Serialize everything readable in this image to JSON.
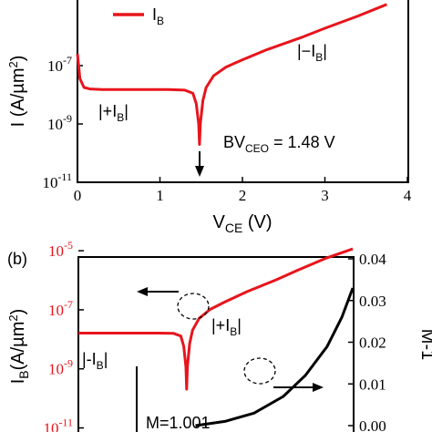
{
  "chart_data": [
    {
      "panel": "",
      "type": "line",
      "xlabel": "V_CE (V)",
      "ylabel": "I (A/µm²)",
      "xlim": [
        0,
        4
      ],
      "ylim_log10": [
        -11,
        -5
      ],
      "y_scale": "log",
      "x_ticks": [
        "0",
        "1",
        "2",
        "3",
        "4"
      ],
      "y_ticks": [
        {
          "base": "10",
          "exp": "-7",
          "value": -7
        },
        {
          "base": "10",
          "exp": "-9",
          "value": -9
        },
        {
          "base": "10",
          "exp": "-11",
          "value": -11
        }
      ],
      "legend": {
        "label_main": "I",
        "label_sub": "B",
        "position": "top-left"
      },
      "series": [
        {
          "name": "I_B",
          "color": "#e8141c",
          "x": [
            0.0,
            0.03,
            0.08,
            0.15,
            0.3,
            0.5,
            0.8,
            1.1,
            1.3,
            1.4,
            1.44,
            1.47,
            1.48,
            1.49,
            1.52,
            1.56,
            1.65,
            1.8,
            2.0,
            2.3,
            2.7,
            3.0,
            3.4,
            3.75
          ],
          "y_log10": [
            -6.6,
            -7.45,
            -7.75,
            -7.8,
            -7.82,
            -7.82,
            -7.82,
            -7.82,
            -7.84,
            -7.95,
            -8.3,
            -9.0,
            -9.7,
            -9.0,
            -8.2,
            -7.75,
            -7.35,
            -7.05,
            -6.8,
            -6.45,
            -6.05,
            -5.72,
            -5.3,
            -4.9
          ]
        }
      ],
      "annotations": [
        {
          "text_parts": [
            "|+I",
            "B",
            "|"
          ],
          "x": 0.6,
          "y_log10": -8.8
        },
        {
          "text_parts": [
            "|−I",
            "B",
            "|"
          ],
          "x": 2.85,
          "y_log10": -6.7
        },
        {
          "text_parts": [
            "BV",
            "CEO",
            " = 1.48 V"
          ],
          "x": 1.75,
          "y_log10": -9.7
        }
      ],
      "grid": false
    },
    {
      "panel": "(b)",
      "type": "line",
      "ylabel_left": "I_B (A/µm²)",
      "ylabel_right": "M-1",
      "y_left_scale": "log",
      "ylim_left_log10": [
        -11,
        -5
      ],
      "ylim_right": [
        0,
        0.04
      ],
      "y_left_ticks": [
        {
          "base": "10",
          "exp": "-5",
          "value": -5
        },
        {
          "base": "10",
          "exp": "-7",
          "value": -7
        },
        {
          "base": "10",
          "exp": "-9",
          "value": -9
        },
        {
          "base": "10",
          "exp": "-11",
          "value": -11
        }
      ],
      "y_right_ticks": [
        "0.04",
        "0.03",
        "0.02",
        "0.01",
        "0.00"
      ],
      "series": [
        {
          "name": "I_B",
          "axis": "left",
          "color": "#e8141c",
          "x": [
            0.0,
            0.3,
            0.6,
            0.9,
            1.1,
            1.3,
            1.4,
            1.44,
            1.47,
            1.48,
            1.49,
            1.52,
            1.56,
            1.65,
            1.8,
            2.0,
            2.3,
            2.7,
            3.0,
            3.4,
            3.75
          ],
          "y_log10": [
            -7.85,
            -7.85,
            -7.85,
            -7.85,
            -7.85,
            -7.86,
            -7.95,
            -8.3,
            -9.0,
            -9.75,
            -9.0,
            -8.2,
            -7.75,
            -7.35,
            -7.05,
            -6.8,
            -6.45,
            -6.05,
            -5.72,
            -5.3,
            -5.0
          ]
        },
        {
          "name": "M-1",
          "axis": "right",
          "color": "#000000",
          "x": [
            1.6,
            2.0,
            2.4,
            2.8,
            3.1,
            3.4,
            3.6,
            3.75
          ],
          "y": [
            0.0,
            0.001,
            0.003,
            0.007,
            0.012,
            0.019,
            0.026,
            0.033
          ]
        }
      ],
      "annotations": [
        {
          "text_parts": [
            "|+I",
            "B",
            "|"
          ],
          "x": 2.3,
          "y_log10": -8.1
        },
        {
          "text_parts": [
            "|-I",
            "B",
            "|"
          ],
          "x": 0.2,
          "y_log10": -9.5
        },
        {
          "text_parts": [
            "M=1.001"
          ],
          "x": 1.85,
          "y_log10": -11.1
        }
      ],
      "grid": false
    }
  ]
}
